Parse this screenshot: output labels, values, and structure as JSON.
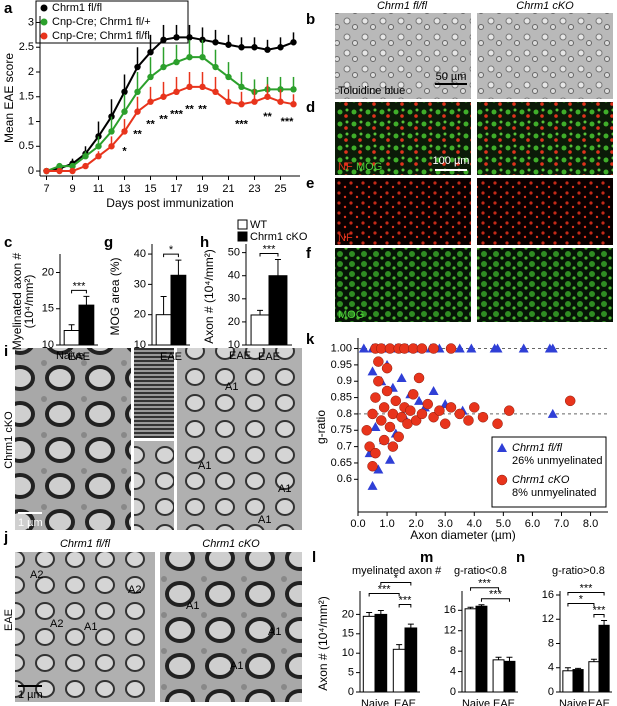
{
  "figure": {
    "panel_letters": [
      "a",
      "b",
      "c",
      "d",
      "e",
      "f",
      "g",
      "h",
      "i",
      "j",
      "k",
      "l",
      "m",
      "n"
    ],
    "micrographs": {
      "col_headers": [
        "Chrm1 fl/fl",
        "Chrm1 cKO"
      ],
      "b_label": "Toluidine blue",
      "b_scale": "50 µm",
      "d_labels": [
        "NF",
        "MOG"
      ],
      "d_scale": "100 µm",
      "e_label": "NF",
      "f_label": "MOG"
    },
    "em": {
      "i_side": "Chrm1 cKO",
      "i_naive": "Naive",
      "i_eae": "EAE",
      "i_scale": "1 µm",
      "j_side": "EAE",
      "j_headers": [
        "Chrm1 fl/fl",
        "Chrm1 cKO"
      ],
      "j_scale": "1 µm",
      "axon_labels": [
        "A1",
        "A2"
      ]
    }
  },
  "chart_data": [
    {
      "type": "line",
      "ylabel": "Mean EAE score",
      "xlabel": "Days post immunization",
      "x": [
        7,
        8,
        9,
        10,
        11,
        12,
        13,
        14,
        15,
        16,
        17,
        18,
        19,
        20,
        21,
        22,
        23,
        24,
        25,
        26
      ],
      "xlim": [
        6.5,
        26.5
      ],
      "xticks": [
        7,
        9,
        11,
        13,
        15,
        17,
        19,
        21,
        23,
        25
      ],
      "ylim": [
        -0.1,
        3.05
      ],
      "yticks": [
        0,
        {
          "value": 0.5,
          "label": "0.5"
        },
        1,
        {
          "value": 1.5,
          "label": "1.5"
        },
        2,
        {
          "value": 2.5,
          "label": "2.5"
        },
        3
      ],
      "series": [
        {
          "name": "Chrm1 fl/fl",
          "color": "#000000",
          "values": [
            0,
            0.05,
            0.15,
            0.35,
            0.7,
            1.1,
            1.6,
            2.1,
            2.4,
            2.65,
            2.7,
            2.7,
            2.65,
            2.6,
            2.55,
            2.5,
            2.5,
            2.45,
            2.5,
            2.6
          ],
          "errors": [
            0,
            0.05,
            0.1,
            0.15,
            0.3,
            0.35,
            0.35,
            0.4,
            0.35,
            0.3,
            0.25,
            0.25,
            0.25,
            0.25,
            0.2,
            0.2,
            0.2,
            0.2,
            0.2,
            0.2
          ]
        },
        {
          "name": "Cnp-Cre; Chrm1 fl/+",
          "color": "#2ca02c",
          "values": [
            0,
            0.1,
            0.1,
            0.3,
            0.5,
            0.8,
            1.2,
            1.6,
            1.9,
            2.1,
            2.2,
            2.3,
            2.3,
            2.1,
            1.9,
            1.7,
            1.6,
            1.65,
            1.65,
            1.65
          ],
          "errors": [
            0,
            0.05,
            0.05,
            0.1,
            0.2,
            0.3,
            0.35,
            0.4,
            0.4,
            0.4,
            0.35,
            0.35,
            0.35,
            0.35,
            0.3,
            0.3,
            0.25,
            0.25,
            0.25,
            0.25
          ]
        },
        {
          "name": "Cnp-Cre; Chrm1 fl/fl",
          "color": "#e8341c",
          "values": [
            0,
            0,
            0,
            0.1,
            0.3,
            0.5,
            0.8,
            1.2,
            1.4,
            1.5,
            1.6,
            1.7,
            1.7,
            1.6,
            1.4,
            1.35,
            1.4,
            1.5,
            1.4,
            1.35
          ],
          "errors": [
            0,
            0,
            0,
            0.05,
            0.1,
            0.2,
            0.25,
            0.3,
            0.3,
            0.3,
            0.3,
            0.3,
            0.3,
            0.3,
            0.25,
            0.25,
            0.25,
            0.25,
            0.25,
            0.2
          ]
        }
      ],
      "annotations": [
        {
          "text": "*",
          "x": 13
        },
        {
          "text": "**",
          "x": 14
        },
        {
          "text": "**",
          "x": 15
        },
        {
          "text": "**",
          "x": 16
        },
        {
          "text": "***",
          "x": 17
        },
        {
          "text": "**",
          "x": 18
        },
        {
          "text": "**",
          "x": 19
        },
        {
          "text": "***",
          "x": 22
        },
        {
          "text": "**",
          "x": 24
        },
        {
          "text": "***",
          "x": 25.5
        }
      ]
    },
    {
      "type": "bar",
      "ylabel": [
        "Myelinated axon #",
        "(10⁴/mm²)"
      ],
      "categories": [
        "EAE"
      ],
      "ylim": [
        10,
        22
      ],
      "yticks": [
        10,
        15,
        20
      ],
      "series": [
        {
          "name": "WT",
          "color": "#ffffff",
          "values": [
            12
          ],
          "errors": [
            0.8
          ]
        },
        {
          "name": "Chrm1 cKO",
          "color": "#000000",
          "values": [
            15.5
          ],
          "errors": [
            1.2
          ]
        }
      ],
      "annotations": [
        "***"
      ]
    },
    {
      "type": "bar",
      "ylabel": [
        "MOG area (%)"
      ],
      "categories": [
        "EAE"
      ],
      "ylim": [
        10,
        42
      ],
      "yticks": [
        10,
        20,
        30,
        40
      ],
      "series": [
        {
          "name": "WT",
          "color": "#ffffff",
          "values": [
            20
          ],
          "errors": [
            6
          ]
        },
        {
          "name": "Chrm1 cKO",
          "color": "#000000",
          "values": [
            33
          ],
          "errors": [
            5
          ]
        }
      ],
      "annotations": [
        "*"
      ]
    },
    {
      "type": "bar",
      "ylabel": [
        "Axon # (10⁴/mm²)"
      ],
      "categories": [
        "EAE"
      ],
      "ylim": [
        10,
        52
      ],
      "yticks": [
        10,
        20,
        30,
        40,
        50
      ],
      "legend": true,
      "series": [
        {
          "name": "WT",
          "color": "#ffffff",
          "values": [
            23
          ],
          "errors": [
            2
          ]
        },
        {
          "name": "Chrm1 cKO",
          "color": "#000000",
          "values": [
            40
          ],
          "errors": [
            7
          ]
        }
      ],
      "annotations": [
        "***"
      ]
    },
    {
      "type": "scatter",
      "ylabel": "g-ratio",
      "xlabel": "Axon diameter (µm)",
      "xlim": [
        0,
        8.6
      ],
      "xticks": [
        {
          "value": 0,
          "label": "0.0"
        },
        {
          "value": 1,
          "label": "1.0"
        },
        {
          "value": 2,
          "label": "2.0"
        },
        {
          "value": 3,
          "label": "3.0"
        },
        {
          "value": 4,
          "label": "4.0"
        },
        {
          "value": 5,
          "label": "5.0"
        },
        {
          "value": 6,
          "label": "6.0"
        },
        {
          "value": 7,
          "label": "7.0"
        },
        {
          "value": 8,
          "label": "8.0"
        }
      ],
      "ylim": [
        0.5,
        1.02
      ],
      "yticks": [
        {
          "value": 0.6,
          "label": "0.6"
        },
        {
          "value": 0.65,
          "label": "0.65"
        },
        {
          "value": 0.7,
          "label": "0.7"
        },
        {
          "value": 0.75,
          "label": "0.75"
        },
        {
          "value": 0.8,
          "label": "0.8"
        },
        {
          "value": 0.85,
          "label": "0.85"
        },
        {
          "value": 0.9,
          "label": "0.9"
        },
        {
          "value": 0.95,
          "label": "0.95"
        },
        {
          "value": 1,
          "label": "1.00"
        }
      ],
      "reference_lines": [
        0.8,
        1
      ],
      "series": [
        {
          "name": "Chrm1 fl/fl",
          "note": "26% unmyelinated",
          "color": "#2f3fd6",
          "marker": "triangle",
          "x": [
            0.2,
            0.5,
            0.9,
            1.3,
            1.7,
            2.0,
            2.5,
            2.8,
            3.5,
            3.9,
            4.7,
            4.8,
            5.7,
            6.6,
            6.7,
            0.5,
            0.8,
            1.0,
            1.2,
            1.5,
            1.8,
            2.1,
            0.6,
            0.9,
            1.3,
            0.4,
            0.7,
            0.5,
            1.6,
            2.3,
            3.0,
            3.6,
            6.7,
            1.1,
            2.6
          ],
          "y": [
            1,
            1,
            1,
            1,
            1,
            1,
            1,
            1,
            1,
            1,
            1,
            1,
            1,
            1,
            1,
            0.93,
            0.9,
            0.95,
            0.88,
            0.91,
            0.86,
            0.84,
            0.76,
            0.72,
            0.74,
            0.68,
            0.63,
            0.58,
            0.79,
            0.82,
            0.83,
            0.81,
            0.8,
            0.66,
            0.87
          ]
        },
        {
          "name": "Chrm1 cKO",
          "note": "8% unmyelinated",
          "color": "#e8341c",
          "marker": "circle",
          "x": [
            0.6,
            0.8,
            1.1,
            1.4,
            1.6,
            1.9,
            2.2,
            2.6,
            3.2,
            0.3,
            0.5,
            0.6,
            0.7,
            0.8,
            0.9,
            1.0,
            1.1,
            1.2,
            1.3,
            1.4,
            1.5,
            1.6,
            1.7,
            1.8,
            1.9,
            2.0,
            2.2,
            2.4,
            2.6,
            2.8,
            3.0,
            3.2,
            3.5,
            3.8,
            4.0,
            4.3,
            4.8,
            5.2,
            0.4,
            0.6,
            0.9,
            1.0,
            0.7,
            2.1,
            7.3,
            0.5,
            1.2
          ],
          "y": [
            1,
            1,
            1,
            1,
            1,
            1,
            1,
            1,
            1,
            0.75,
            0.8,
            0.85,
            0.9,
            0.78,
            0.82,
            0.87,
            0.76,
            0.8,
            0.84,
            0.73,
            0.79,
            0.82,
            0.77,
            0.81,
            0.86,
            0.78,
            0.8,
            0.83,
            0.79,
            0.81,
            0.77,
            0.82,
            0.8,
            0.78,
            0.82,
            0.79,
            0.77,
            0.81,
            0.7,
            0.68,
            0.72,
            0.94,
            0.96,
            0.91,
            0.84,
            0.64,
            0.7
          ]
        }
      ]
    },
    {
      "type": "bar",
      "title": "myelinated axon #",
      "ylabel": [
        "Axon # (10⁴/mm²)"
      ],
      "categories": [
        "Naive",
        "EAE"
      ],
      "ylim": [
        0,
        25
      ],
      "yticks": [
        0,
        5,
        10,
        15,
        20
      ],
      "series": [
        {
          "name": "WT",
          "color": "#ffffff",
          "values": [
            19.5,
            11
          ],
          "errors": [
            1,
            1.2
          ]
        },
        {
          "name": "Chrm1 cKO",
          "color": "#000000",
          "values": [
            20,
            16.5
          ],
          "errors": [
            1,
            1
          ]
        }
      ],
      "annotations": [
        "*",
        "***",
        "***"
      ]
    },
    {
      "type": "bar",
      "title": "g-ratio<0.8",
      "categories": [
        "Naive",
        "EAE"
      ],
      "ylim": [
        0,
        19
      ],
      "yticks": [
        0,
        4,
        8,
        12,
        16
      ],
      "series": [
        {
          "name": "WT",
          "color": "#ffffff",
          "values": [
            16.3,
            6.3
          ],
          "errors": [
            0.3,
            0.5
          ]
        },
        {
          "name": "Chrm1 cKO",
          "color": "#000000",
          "values": [
            16.8,
            6
          ],
          "errors": [
            0.3,
            0.8
          ]
        }
      ],
      "annotations": [
        "***",
        "***"
      ]
    },
    {
      "type": "bar",
      "title": "g-ratio>0.8",
      "categories": [
        "Naive",
        "EAE"
      ],
      "ylim": [
        0,
        16
      ],
      "yticks": [
        0,
        4,
        8,
        12,
        16
      ],
      "series": [
        {
          "name": "WT",
          "color": "#ffffff",
          "values": [
            3.5,
            5
          ],
          "errors": [
            0.5,
            0.4
          ]
        },
        {
          "name": "Chrm1 cKO",
          "color": "#000000",
          "values": [
            3.7,
            11
          ],
          "errors": [
            0.2,
            0.8
          ]
        }
      ],
      "annotations": [
        "***",
        "*",
        "***"
      ]
    }
  ]
}
